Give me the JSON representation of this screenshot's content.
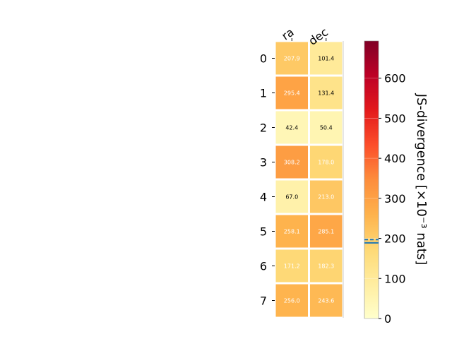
{
  "chart_data": {
    "type": "heatmap",
    "columns": [
      "ra",
      "dec"
    ],
    "rows": [
      "0",
      "1",
      "2",
      "3",
      "4",
      "5",
      "6",
      "7"
    ],
    "values": [
      [
        207.9,
        101.4
      ],
      [
        295.4,
        131.4
      ],
      [
        42.4,
        50.4
      ],
      [
        308.2,
        178.0
      ],
      [
        67.0,
        213.0
      ],
      [
        258.1,
        285.1
      ],
      [
        171.2,
        182.3
      ],
      [
        256.0,
        243.6
      ]
    ],
    "cell_labels": [
      [
        "207.9",
        "101.4"
      ],
      [
        "295.4",
        "131.4"
      ],
      [
        "42.4",
        "50.4"
      ],
      [
        "308.2",
        "178.0"
      ],
      [
        "67.0",
        "213.0"
      ],
      [
        "258.1",
        "285.1"
      ],
      [
        "171.2",
        "182.3"
      ],
      [
        "256.0",
        "243.6"
      ]
    ],
    "colorbar": {
      "label": "JS-divergence [×10⁻³ nats]",
      "range": [
        0,
        693
      ],
      "ticks": [
        0,
        100,
        200,
        300,
        400,
        500,
        600
      ],
      "tick_labels": [
        "0",
        "100",
        "200",
        "300",
        "400",
        "500",
        "600"
      ],
      "colormap": "YlOrRd",
      "reference_lines": [
        {
          "value": 189,
          "style": "solid",
          "color": "#1f77b4"
        },
        {
          "value": 197,
          "style": "dashed",
          "color": "#1f77b4"
        }
      ]
    }
  }
}
